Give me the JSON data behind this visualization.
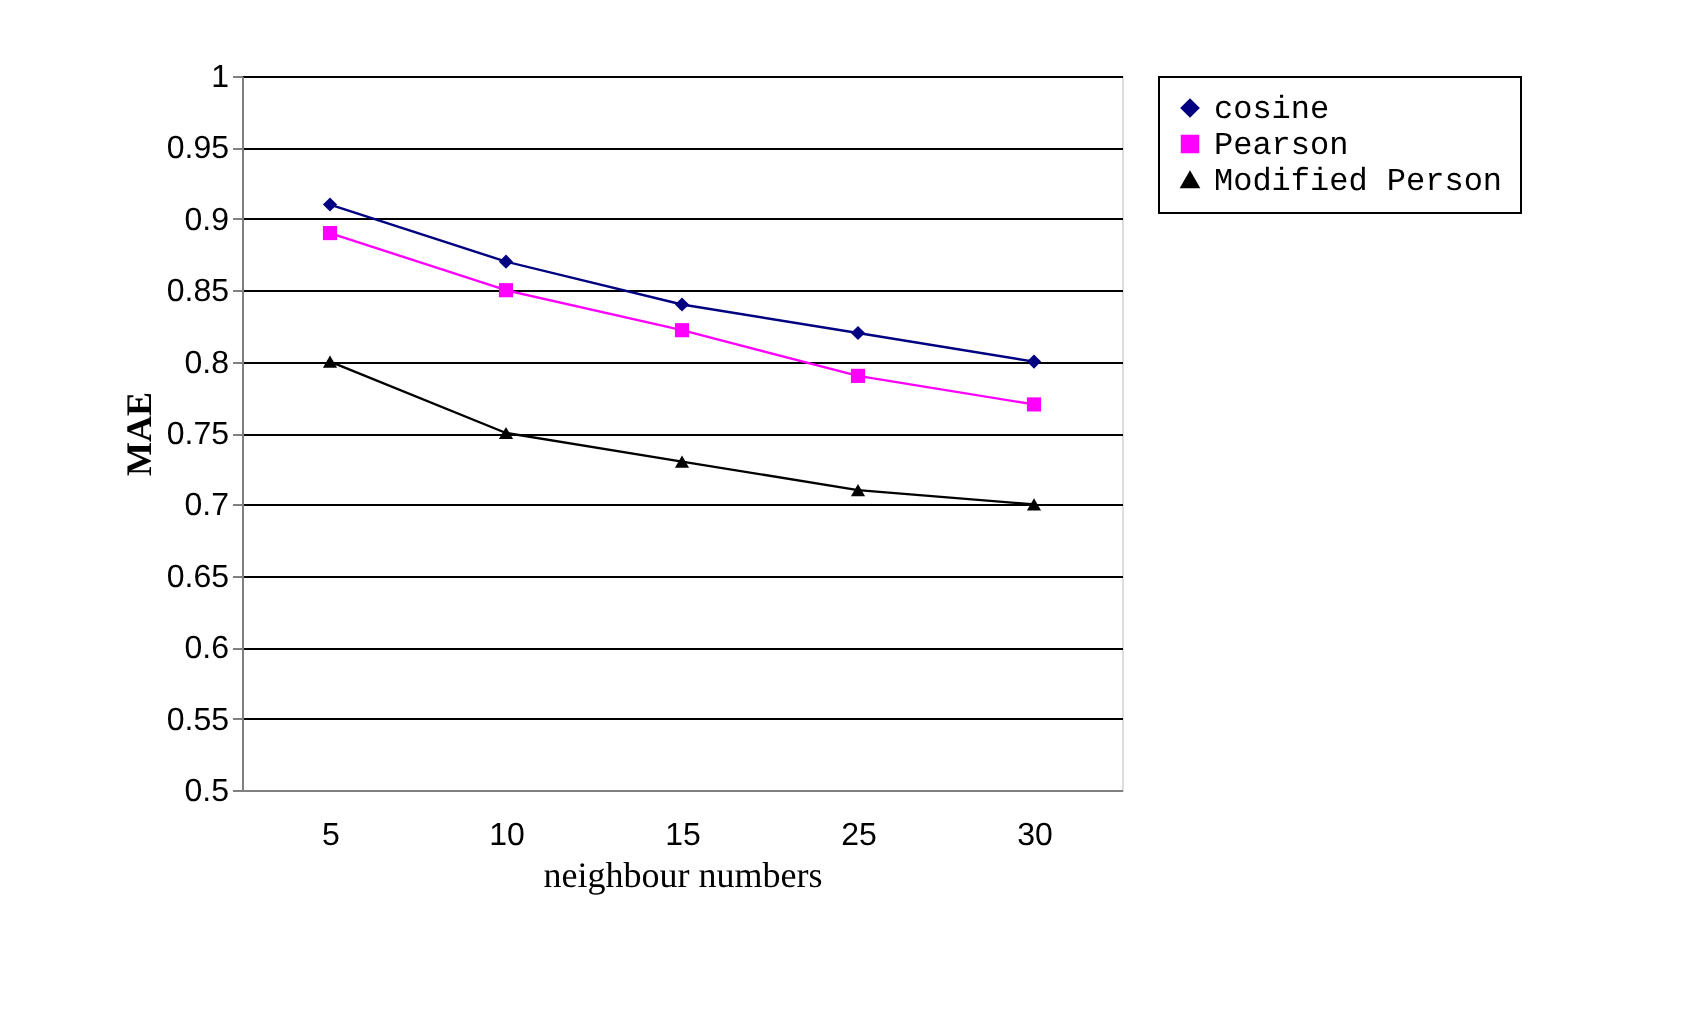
{
  "chart_data": {
    "type": "line",
    "xlabel": "neighbour numbers",
    "ylabel": "MAE",
    "categories": [
      "5",
      "10",
      "15",
      "25",
      "30"
    ],
    "series": [
      {
        "name": "cosine",
        "color": "#000080",
        "marker": "diamond",
        "values": [
          0.91,
          0.87,
          0.84,
          0.82,
          0.8
        ]
      },
      {
        "name": "Pearson",
        "color": "#ff00ff",
        "marker": "square",
        "values": [
          0.89,
          0.85,
          0.822,
          0.79,
          0.77
        ]
      },
      {
        "name": "Modified Person",
        "color": "#000000",
        "marker": "triangle",
        "values": [
          0.8,
          0.75,
          0.73,
          0.71,
          0.7
        ]
      }
    ],
    "ylim": [
      0.5,
      1
    ],
    "yticks": [
      0.5,
      0.55,
      0.6,
      0.65,
      0.7,
      0.75,
      0.8,
      0.85,
      0.9,
      0.95,
      1
    ],
    "grid": "y",
    "legend": "right",
    "line_style": "solid"
  }
}
